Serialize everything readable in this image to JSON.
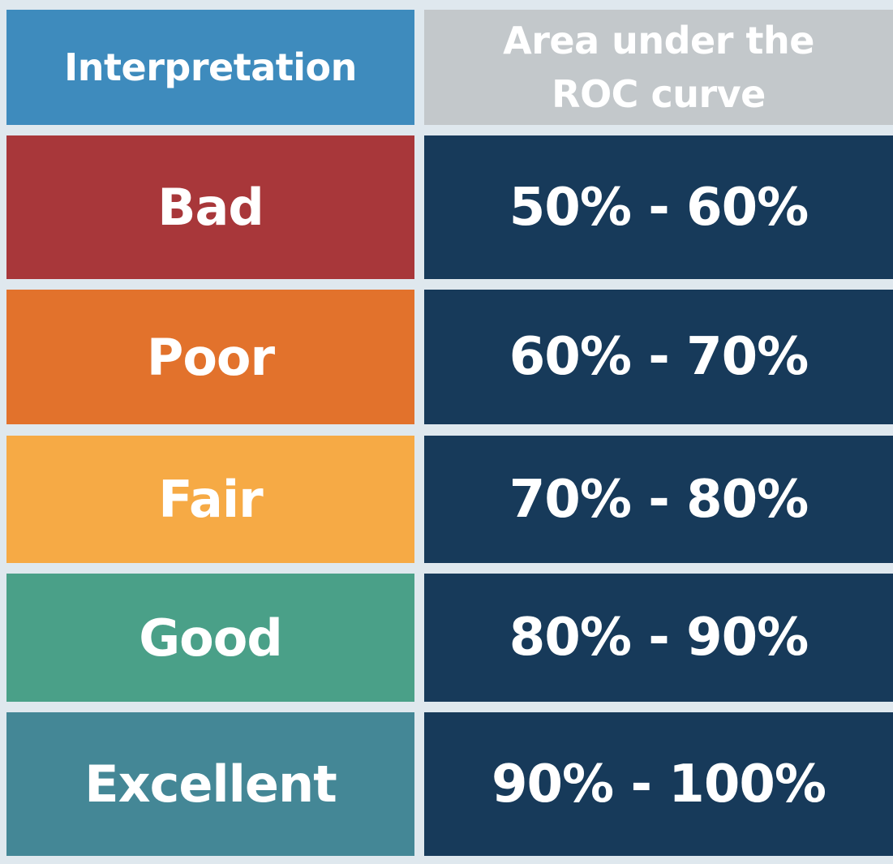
{
  "header": {
    "interpretation": "Interpretation",
    "area_line1": "Area under the",
    "area_line2": "ROC curve"
  },
  "rows": [
    {
      "label": "Bad",
      "range": "50% - 60%",
      "color": "#a8373a"
    },
    {
      "label": "Poor",
      "range": "60% - 70%",
      "color": "#e2722c"
    },
    {
      "label": "Fair",
      "range": "70% - 80%",
      "color": "#f6aa45"
    },
    {
      "label": "Good",
      "range": "80% - 90%",
      "color": "#4aa088"
    },
    {
      "label": "Excellent",
      "range": "90% - 100%",
      "color": "#448796"
    }
  ],
  "colors": {
    "header_interpretation": "#3e8bbd",
    "header_area": "#c3c8cb",
    "value_cell": "#173a5a",
    "background": "#dfe8ee"
  }
}
